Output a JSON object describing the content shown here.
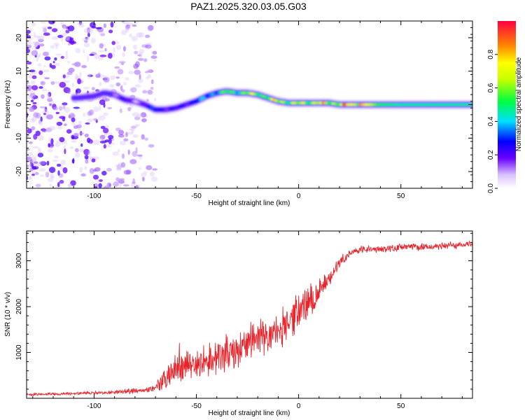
{
  "title": "PAZ1.2025.320.03.05.G03",
  "colors": {
    "signal_line": "#e8242b",
    "spectrum_purple": "#7a1bff",
    "spectrum_faint": "#d9c6ff",
    "background": "#ffffff",
    "axis": "#000000"
  },
  "chart_data": [
    {
      "type": "heatmap",
      "name": "spectrogram",
      "xlabel": "Height of straight line (km)",
      "ylabel": "Frequency (Hz)",
      "xlim": [
        -133,
        85
      ],
      "ylim": [
        -25,
        25
      ],
      "xticks": [
        -100,
        -50,
        0,
        50
      ],
      "yticks": [
        -20,
        -10,
        0,
        10,
        20
      ],
      "xtick_labels": [
        "-100",
        "-50",
        "0",
        "50"
      ],
      "ytick_labels": [
        "-20",
        "-10",
        "0",
        "10",
        "20"
      ],
      "ridge": {
        "x": [
          -108,
          -100,
          -95,
          -90,
          -85,
          -80,
          -75,
          -70,
          -65,
          -60,
          -55,
          -50,
          -45,
          -40,
          -35,
          -30,
          -25,
          -20,
          -15,
          -10,
          -5,
          0,
          5,
          10,
          15,
          20,
          25,
          30,
          40,
          50,
          60,
          70,
          80,
          85
        ],
        "y": [
          2.0,
          2.5,
          3.5,
          3.0,
          1.5,
          1.0,
          0.0,
          -1.5,
          -1.5,
          -1.0,
          0.0,
          1.0,
          2.5,
          3.5,
          4.0,
          3.5,
          3.5,
          3.0,
          2.0,
          1.0,
          0.5,
          0.5,
          0.5,
          0.5,
          0.5,
          0.0,
          0.0,
          0.0,
          0.0,
          0.0,
          0.0,
          0.0,
          0.0,
          0.0
        ],
        "amplitude": [
          0.08,
          0.1,
          0.12,
          0.2,
          0.28,
          0.12,
          0.28,
          0.35,
          0.3,
          0.25,
          0.3,
          0.4,
          0.45,
          0.55,
          0.65,
          0.7,
          0.75,
          0.8,
          0.75,
          0.85,
          0.8,
          0.75,
          0.85,
          0.9,
          0.8,
          0.95,
          0.95,
          0.85,
          0.5,
          0.45,
          0.45,
          0.45,
          0.45,
          0.45
        ]
      },
      "colorbar": {
        "label": "Normalized spectral amplitude",
        "range": [
          0,
          1
        ],
        "ticks": [
          0.0,
          0.2,
          0.4,
          0.6,
          0.8
        ],
        "tick_labels": [
          "0.0",
          "0.2",
          "0.4",
          "0.6",
          "0.8"
        ]
      }
    },
    {
      "type": "line",
      "name": "snr",
      "xlabel": "Height of straight line (km)",
      "ylabel": "SNR (10 * v/v)",
      "xlim": [
        -133,
        85
      ],
      "ylim": [
        0,
        3650
      ],
      "xticks": [
        -100,
        -50,
        0,
        50
      ],
      "yticks": [
        1000,
        2000,
        3000
      ],
      "xtick_labels": [
        "-100",
        "-50",
        "0",
        "50"
      ],
      "ytick_labels": [
        "1000",
        "2000",
        "3000"
      ],
      "series": [
        {
          "name": "SNR",
          "x": [
            -133,
            -125,
            -115,
            -105,
            -95,
            -85,
            -80,
            -75,
            -70,
            -65,
            -60,
            -55,
            -50,
            -45,
            -40,
            -35,
            -30,
            -25,
            -20,
            -15,
            -10,
            -5,
            0,
            5,
            10,
            15,
            20,
            25,
            30,
            40,
            50,
            60,
            70,
            80,
            85
          ],
          "y": [
            80,
            90,
            95,
            110,
            120,
            150,
            180,
            170,
            220,
            450,
            650,
            700,
            720,
            850,
            900,
            1000,
            1050,
            1200,
            1300,
            1350,
            1450,
            1700,
            1900,
            2100,
            2300,
            2600,
            2950,
            3150,
            3250,
            3250,
            3300,
            3300,
            3320,
            3350,
            3380
          ],
          "noise": [
            30,
            30,
            30,
            35,
            35,
            60,
            90,
            50,
            100,
            300,
            380,
            380,
            380,
            420,
            450,
            480,
            480,
            480,
            470,
            480,
            450,
            500,
            500,
            450,
            350,
            220,
            140,
            110,
            100,
            90,
            90,
            90,
            90,
            90,
            90
          ]
        }
      ]
    }
  ]
}
